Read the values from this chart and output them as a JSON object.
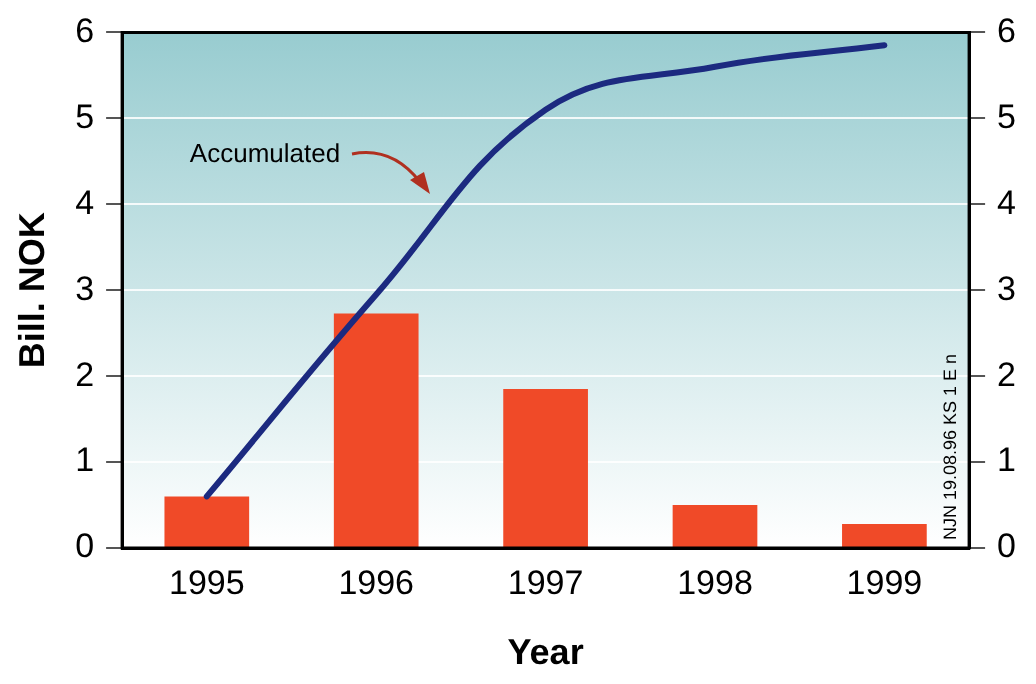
{
  "chart_data": {
    "type": "bar",
    "xlabel": "Year",
    "ylabel": "Bill. NOK",
    "categories": [
      "1995",
      "1996",
      "1997",
      "1998",
      "1999"
    ],
    "series": [
      {
        "color": "#f04a28",
        "values": [
          0.6,
          2.73,
          1.85,
          0.5,
          0.28
        ]
      },
      {
        "type": "line",
        "name": "Accumulated",
        "color": "#1c2a80",
        "values": [
          0.6,
          2.95,
          5.1,
          5.6,
          5.85
        ]
      }
    ],
    "ylim": [
      0,
      6
    ],
    "yticks": [
      0,
      1,
      2,
      3,
      4,
      5,
      6
    ],
    "y2lim": [
      0,
      6
    ],
    "y2ticks": [
      0,
      1,
      2,
      3,
      4,
      5,
      6
    ],
    "grid": "y",
    "legend": false,
    "annotations": [
      "NJN 19.08.96 KS 1 E n"
    ]
  }
}
